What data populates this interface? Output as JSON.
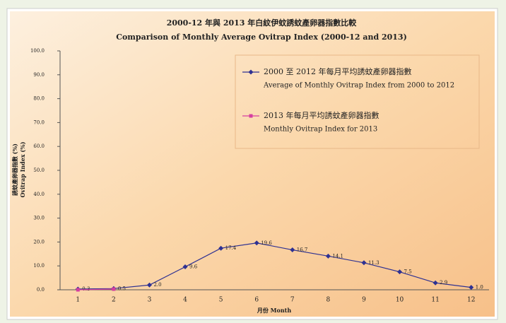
{
  "chart_data": {
    "type": "line",
    "title": "2000-12 年與 2013 年白紋伊蚊誘蚊產卵器指數比較",
    "subtitle": "Comparison of Monthly Average Ovitrap Index (2000-12 and 2013)",
    "y_label": "誘蚊產卵器指數 (%)",
    "y_label_en": "Ovitrap Index (%)",
    "x_label": "月份 Month",
    "categories": [
      "1",
      "2",
      "3",
      "4",
      "5",
      "6",
      "7",
      "8",
      "9",
      "10",
      "11",
      "12"
    ],
    "series": [
      {
        "name": "2000 至 2012 年每月平均誘蚊產卵器指數",
        "name_en": "Average of Monthly Ovitrap Index from 2000 to 2012",
        "color": "#2e3192",
        "marker": "diamond",
        "values": [
          0.3,
          0.5,
          2.0,
          9.6,
          17.4,
          19.6,
          16.7,
          14.1,
          11.3,
          7.5,
          2.9,
          1.0
        ],
        "value_labels": [
          "0.3",
          "0.5",
          "2.0",
          "9.6",
          "17.4",
          "19.6",
          "16.7",
          "14.1",
          "11.3",
          "7.5",
          "2.9",
          "1.0"
        ]
      },
      {
        "name": "2013 年每月平均誘蚊產卵器指數",
        "name_en": "Monthly Ovitrap Index for 2013",
        "color": "#d63fa0",
        "marker": "square",
        "values": [
          0.0,
          0.3,
          null,
          null,
          null,
          null,
          null,
          null,
          null,
          null,
          null,
          null
        ]
      }
    ],
    "ylim": [
      0,
      100
    ],
    "yticks": [
      {
        "value": 0,
        "label": "0.0"
      },
      {
        "value": 10,
        "label": "10.0"
      },
      {
        "value": 20,
        "label": "20.0"
      },
      {
        "value": 30,
        "label": "30.0"
      },
      {
        "value": 40,
        "label": "40.0"
      },
      {
        "value": 50,
        "label": "50.0"
      },
      {
        "value": 60,
        "label": "60.0"
      },
      {
        "value": 70,
        "label": "70.0"
      },
      {
        "value": 80,
        "label": "80.0"
      },
      {
        "value": 90,
        "label": "90.0"
      },
      {
        "value": 100,
        "label": "100.0"
      }
    ],
    "legend": "upper right"
  }
}
